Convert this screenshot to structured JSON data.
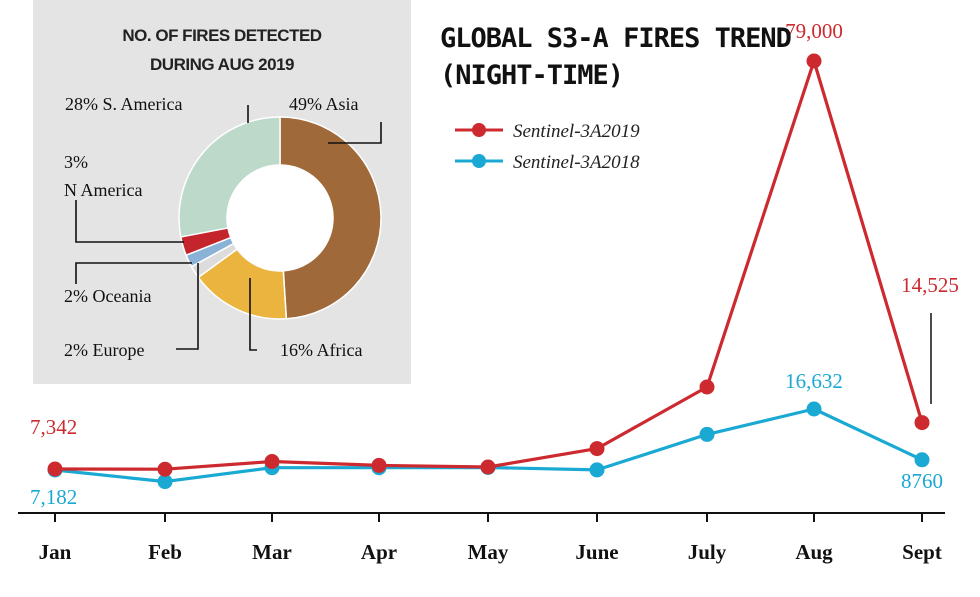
{
  "colors": {
    "series_2019": "#cc2a2f",
    "series_2018": "#1aa9d3",
    "inset_bg": "#e4e4e4",
    "axis": "#111111"
  },
  "chart_data": [
    {
      "type": "line",
      "title": "GLOBAL S3-A FIRES TREND",
      "subtitle": "(NIGHT-TIME)",
      "categories": [
        "Jan",
        "Feb",
        "Mar",
        "Apr",
        "May",
        "June",
        "July",
        "Aug",
        "Sept"
      ],
      "series": [
        {
          "name": "Sentinel-3A 2019",
          "legend_label": "Sentinel-3A2019",
          "color": "#cc2a2f",
          "values": [
            7342,
            7300,
            8500,
            7900,
            6600,
            10500,
            25000,
            79000,
            14525
          ]
        },
        {
          "name": "Sentinel-3A 2018",
          "legend_label": "Sentinel-3A2018",
          "color": "#1aa9d3",
          "values": [
            7182,
            4500,
            6500,
            6500,
            6700,
            7200,
            12700,
            16632,
            8760
          ]
        }
      ],
      "data_labels": [
        {
          "series": 0,
          "index": 0,
          "text": "7,342"
        },
        {
          "series": 0,
          "index": 7,
          "text": "79,000"
        },
        {
          "series": 0,
          "index": 8,
          "text": "14,525"
        },
        {
          "series": 1,
          "index": 0,
          "text": "7,182"
        },
        {
          "series": 1,
          "index": 7,
          "text": "16,632"
        },
        {
          "series": 1,
          "index": 8,
          "text": "8760"
        }
      ],
      "xlabel": "",
      "ylabel": "",
      "ylim": [
        0,
        80000
      ],
      "grid": false,
      "legend_position": "top-center"
    },
    {
      "type": "pie",
      "style": "donut",
      "title_lines": [
        "NO. OF FIRES DETECTED",
        "DURING AUG 2019"
      ],
      "slices": [
        {
          "name": "Asia",
          "value": 49,
          "label": "49% Asia",
          "color": "#a0693a"
        },
        {
          "name": "Africa",
          "value": 16,
          "label": "16% Africa",
          "color": "#eab43e"
        },
        {
          "name": "Europe",
          "value": 2,
          "label": "2% Europe",
          "color": "#dcdcdc"
        },
        {
          "name": "Oceania",
          "value": 2,
          "label": "2% Oceania",
          "color": "#8ab2d6"
        },
        {
          "name": "N America",
          "value": 3,
          "label_lines": [
            "3%",
            "N America"
          ],
          "color": "#c4242b"
        },
        {
          "name": "S. America",
          "value": 28,
          "label": "28% S. America",
          "color": "#bdd9c9"
        }
      ]
    }
  ]
}
